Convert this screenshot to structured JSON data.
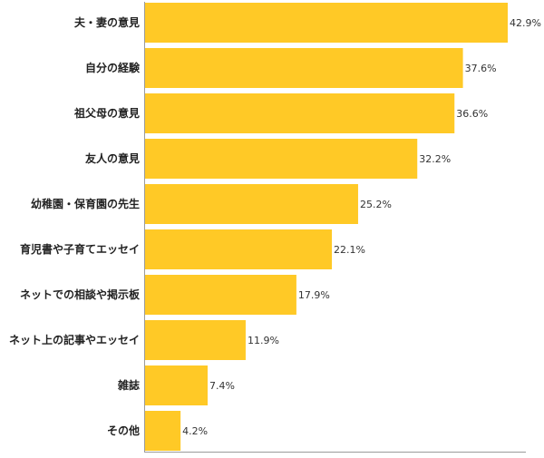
{
  "chart_data": {
    "type": "bar",
    "orientation": "horizontal",
    "categories": [
      "夫・妻の意見",
      "自分の経験",
      "祖父母の意見",
      "友人の意見",
      "幼稚園・保育園の先生",
      "育児書や子育てエッセイ",
      "ネットでの相談や掲示板",
      "ネット上の記事やエッセイ",
      "雑誌",
      "その他"
    ],
    "values": [
      42.9,
      37.6,
      36.6,
      32.2,
      25.2,
      22.1,
      17.9,
      11.9,
      7.4,
      4.2
    ],
    "value_labels": [
      "42.9%",
      "37.6%",
      "36.6%",
      "32.2%",
      "25.2%",
      "22.1%",
      "17.9%",
      "11.9%",
      "7.4%",
      "4.2%"
    ],
    "unit": "%",
    "xlim": [
      0,
      45
    ],
    "grid": false,
    "title": "",
    "xlabel": "",
    "ylabel": ""
  },
  "colors": {
    "bar": "#FFC926",
    "axis": "#9a9a9a",
    "text": "#222222"
  }
}
